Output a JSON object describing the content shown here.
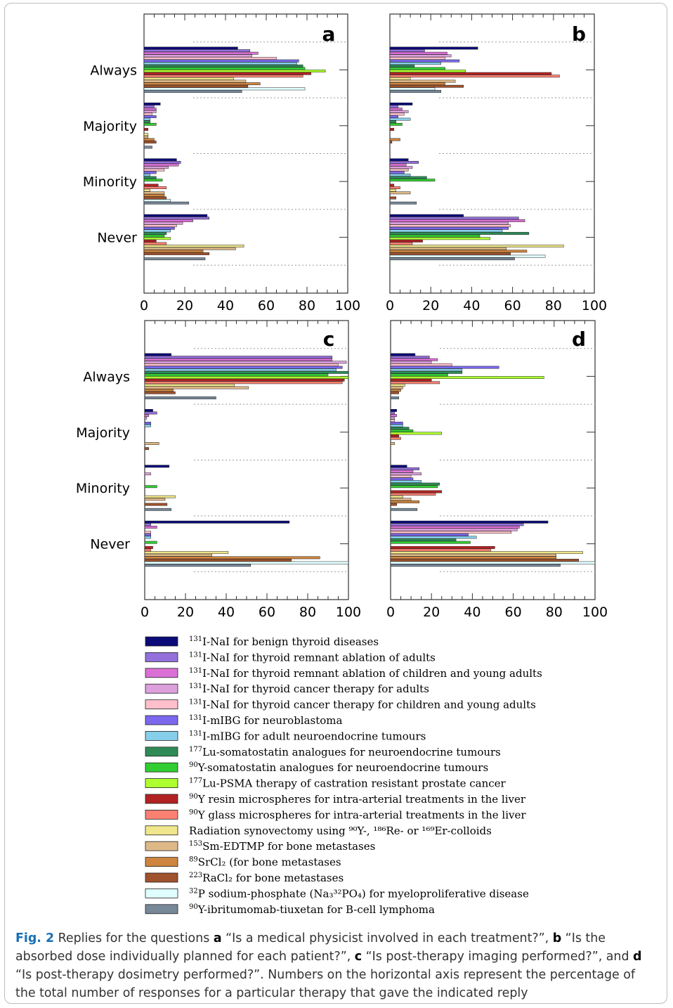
{
  "legend": {
    "items": [
      {
        "sup": "131",
        "text": "I-NaI for benign thyroid diseases",
        "color": "#0a0a78"
      },
      {
        "sup": "131",
        "text": "I-NaI for thyroid remnant ablation of adults",
        "color": "#9370db"
      },
      {
        "sup": "131",
        "text": "I-NaI for thyroid remnant ablation of children and young adults",
        "color": "#da70d6"
      },
      {
        "sup": "131",
        "text": "I-NaI for thyroid cancer therapy for adults",
        "color": "#dda0dd"
      },
      {
        "sup": "131",
        "text": "I-NaI for thyroid cancer therapy for children and young adults",
        "color": "#ffc0cb"
      },
      {
        "sup": "131",
        "text": "I-mIBG for neuroblastoma",
        "color": "#7b68ee"
      },
      {
        "sup": "131",
        "text": "I-mIBG for adult neuroendocrine tumours",
        "color": "#87ceeb"
      },
      {
        "sup": "177",
        "text": "Lu-somatostatin analogues for neuroendocrine tumours",
        "color": "#2e8b57"
      },
      {
        "sup": "90",
        "text": "Y-somatostatin analogues for neuroendocrine tumours",
        "color": "#32cd32"
      },
      {
        "sup": "177",
        "text": "Lu-PSMA therapy of castration resistant prostate cancer",
        "color": "#adff2f"
      },
      {
        "sup": "90",
        "text": "Y resin microspheres for intra-arterial treatments in the liver",
        "color": "#b22222"
      },
      {
        "sup": "90",
        "text": "Y glass microspheres for intra-arterial treatments in the liver",
        "color": "#fa8072"
      },
      {
        "sup": "",
        "text": "Radiation synovectomy using ⁹⁰Y-, ¹⁸⁶Re- or ¹⁶⁹Er-colloids",
        "color": "#f0e68c"
      },
      {
        "sup": "153",
        "text": "Sm-EDTMP for bone metastases",
        "color": "#deb887"
      },
      {
        "sup": "89",
        "text": "SrCl₂ (for bone metastases",
        "color": "#cd853f"
      },
      {
        "sup": "223",
        "text": "RaCl₂ for bone metastases",
        "color": "#a0522d"
      },
      {
        "sup": "32",
        "text": "P sodium-phosphate (Na₃³²PO₄) for myeloproliferative disease",
        "color": "#e0ffff"
      },
      {
        "sup": "90",
        "text": "Y-ibritumomab-tiuxetan for B-cell lymphoma",
        "color": "#778899"
      }
    ]
  },
  "caption": {
    "fig_label": "Fig. 2",
    "t1": " Replies for the questions ",
    "a": "a",
    "qa": " “Is a medical physicist involved in each treatment?”, ",
    "b": "b",
    "qb": " “Is the absorbed dose individually planned for each patient?”, ",
    "c": "c",
    "qc": " “Is post-therapy imaging performed?”, and ",
    "d": "d",
    "qd": " “Is post-therapy dosimetry performed?”. Numbers on the horizontal axis represent the percentage of the total number of responses for a particular therapy that gave the indicated reply"
  },
  "chart_data": [
    {
      "type": "bar",
      "panel_label": "a",
      "categories": [
        "Always",
        "Majority",
        "Minority",
        "Never"
      ],
      "xlim": [
        0,
        100
      ],
      "xticks": [
        "0",
        "20",
        "40",
        "60",
        "80",
        "100"
      ],
      "series_values": [
        [
          46,
          8,
          16,
          31
        ],
        [
          52,
          5,
          18,
          32
        ],
        [
          56,
          6,
          17,
          24
        ],
        [
          53,
          6,
          12,
          19
        ],
        [
          65,
          4,
          10,
          16
        ],
        [
          76,
          6,
          6,
          15
        ],
        [
          75,
          3,
          3,
          13
        ],
        [
          78,
          3,
          6,
          11
        ],
        [
          79,
          6,
          9,
          10
        ],
        [
          89,
          0,
          0,
          13
        ],
        [
          82,
          2,
          7,
          6
        ],
        [
          78,
          0,
          11,
          11
        ],
        [
          44,
          2,
          3,
          49
        ],
        [
          50,
          2,
          10,
          45
        ],
        [
          57,
          5,
          10,
          29
        ],
        [
          51,
          6,
          11,
          32
        ],
        [
          79,
          0,
          13,
          0
        ],
        [
          48,
          4,
          22,
          30
        ]
      ]
    },
    {
      "type": "bar",
      "panel_label": "b",
      "categories": [
        "Always",
        "Majority",
        "Minority",
        "Never"
      ],
      "xlim": [
        0,
        100
      ],
      "xticks": [
        "0",
        "20",
        "40",
        "60",
        "80",
        "100"
      ],
      "series_values": [
        [
          43,
          11,
          9,
          36
        ],
        [
          17,
          4,
          14,
          63
        ],
        [
          28,
          6,
          8,
          66
        ],
        [
          30,
          9,
          11,
          58
        ],
        [
          27,
          7,
          9,
          59
        ],
        [
          34,
          4,
          7,
          58
        ],
        [
          25,
          10,
          10,
          55
        ],
        [
          12,
          3,
          18,
          68
        ],
        [
          27,
          6,
          22,
          44
        ],
        [
          37,
          0,
          0,
          49
        ],
        [
          79,
          2,
          2,
          16
        ],
        [
          83,
          0,
          5,
          11
        ],
        [
          10,
          0,
          3,
          85
        ],
        [
          32,
          0,
          10,
          57
        ],
        [
          27,
          5,
          0,
          67
        ],
        [
          36,
          1,
          3,
          59
        ],
        [
          22,
          0,
          0,
          76
        ],
        [
          25,
          0,
          13,
          61
        ]
      ]
    },
    {
      "type": "bar",
      "panel_label": "c",
      "categories": [
        "Always",
        "Majority",
        "Minority",
        "Never"
      ],
      "xlim": [
        0,
        100
      ],
      "xticks": [
        "0",
        "20",
        "40",
        "60",
        "80",
        "100"
      ],
      "series_values": [
        [
          13,
          4,
          12,
          71
        ],
        [
          92,
          6,
          0,
          3
        ],
        [
          92,
          2,
          0,
          6
        ],
        [
          99,
          1,
          3,
          0
        ],
        [
          95,
          0,
          0,
          3
        ],
        [
          97,
          3,
          0,
          3
        ],
        [
          94,
          3,
          0,
          3
        ],
        [
          100,
          0,
          0,
          0
        ],
        [
          90,
          0,
          6,
          6
        ],
        [
          100,
          0,
          0,
          0
        ],
        [
          98,
          0,
          0,
          4
        ],
        [
          97,
          0,
          0,
          3
        ],
        [
          44,
          0,
          15,
          41
        ],
        [
          51,
          7,
          10,
          33
        ],
        [
          14,
          0,
          0,
          86
        ],
        [
          15,
          2,
          11,
          72
        ],
        [
          0,
          0,
          0,
          100
        ],
        [
          35,
          0,
          13,
          52
        ]
      ]
    },
    {
      "type": "bar",
      "panel_label": "d",
      "categories": [
        "Always",
        "Majority",
        "Minority",
        "Never"
      ],
      "xlim": [
        0,
        100
      ],
      "xticks": [
        "0",
        "20",
        "40",
        "60",
        "80",
        "100"
      ],
      "series_values": [
        [
          12,
          3,
          8,
          77
        ],
        [
          19,
          2,
          14,
          65
        ],
        [
          23,
          3,
          11,
          63
        ],
        [
          20,
          2,
          15,
          62
        ],
        [
          30,
          2,
          10,
          59
        ],
        [
          53,
          6,
          11,
          38
        ],
        [
          35,
          6,
          15,
          42
        ],
        [
          35,
          9,
          24,
          32
        ],
        [
          28,
          11,
          23,
          39
        ],
        [
          75,
          25,
          0,
          0
        ],
        [
          20,
          4,
          25,
          51
        ],
        [
          24,
          5,
          22,
          49
        ],
        [
          7,
          0,
          6,
          94
        ],
        [
          6,
          2,
          10,
          81
        ],
        [
          5,
          0,
          14,
          81
        ],
        [
          4,
          0,
          3,
          92
        ],
        [
          0,
          0,
          0,
          100
        ],
        [
          4,
          0,
          13,
          83
        ]
      ]
    }
  ]
}
